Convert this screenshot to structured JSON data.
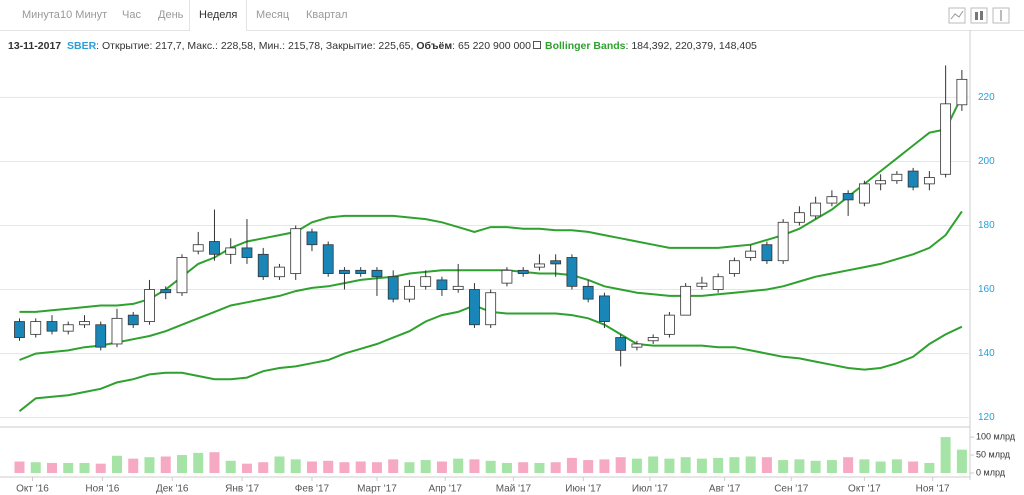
{
  "tabs": {
    "items": [
      "Минута",
      "10 Минут",
      "Час",
      "День",
      "Неделя",
      "Месяц",
      "Квартал"
    ],
    "active": 4
  },
  "header": {
    "date": "13-11-2017",
    "symbol": "SBER",
    "ohlc": ": Открытие: 217,7, Макс.: 228,58, Мин.: 215,78, Закрытие: 225,65,",
    "volume_label": "Объём",
    "volume_value": ": 65 220 900 000",
    "indicator": "Bollinger Bands",
    "indicator_values": ": 184,392, 220,379, 148,405"
  },
  "chart_data": {
    "type": "candlestick",
    "xlim": [
      -1.2,
      58.5
    ],
    "xticks": [
      {
        "value": 0.8,
        "label": "Окт '16"
      },
      {
        "value": 5.1,
        "label": "Ноя '16"
      },
      {
        "value": 9.4,
        "label": "Дек '16"
      },
      {
        "value": 13.7,
        "label": "Янв '17"
      },
      {
        "value": 18,
        "label": "Фев '17"
      },
      {
        "value": 22,
        "label": "Март '17"
      },
      {
        "value": 26.2,
        "label": "Апр '17"
      },
      {
        "value": 30.4,
        "label": "Май '17"
      },
      {
        "value": 34.7,
        "label": "Июн '17"
      },
      {
        "value": 38.8,
        "label": "Июл '17"
      },
      {
        "value": 43.4,
        "label": "Авг '17"
      },
      {
        "value": 47.5,
        "label": "Сен '17"
      },
      {
        "value": 52,
        "label": "Окт '17"
      },
      {
        "value": 56.2,
        "label": "Ноя '17"
      }
    ],
    "ylim": [
      118,
      239.5
    ],
    "yticks": [
      120,
      140,
      160,
      180,
      200,
      220
    ],
    "grid": true,
    "up_color": "#ffffff",
    "down_color": "#1a86b8",
    "open": [
      150,
      146,
      150,
      147,
      149,
      149,
      143,
      152,
      150,
      160,
      159,
      172,
      175,
      171,
      173,
      171,
      164,
      165,
      178,
      174,
      166,
      166,
      166,
      164,
      157,
      161,
      163,
      160,
      160,
      149,
      162,
      166,
      167,
      169,
      170,
      161,
      158,
      145,
      142,
      144,
      146,
      152,
      161,
      160,
      165,
      170,
      174,
      169,
      181,
      183,
      187,
      190,
      187,
      193,
      194,
      197,
      193,
      196,
      217.7
    ],
    "high": [
      151,
      151,
      152,
      150,
      152,
      150,
      154,
      153,
      163,
      161,
      171,
      178,
      185,
      176,
      182,
      173,
      168,
      180,
      179,
      175,
      167,
      167,
      167,
      166,
      163,
      166,
      164,
      168,
      162,
      160,
      167,
      167,
      171,
      171,
      171,
      163,
      159,
      146,
      144,
      146,
      153,
      162,
      164,
      165,
      170,
      174,
      175,
      182,
      186,
      189,
      191,
      191,
      194,
      196,
      197,
      198,
      197,
      230,
      228.58
    ],
    "low": [
      144,
      145,
      146,
      146,
      148,
      141,
      142,
      148,
      149,
      157,
      158,
      171,
      169,
      168,
      168,
      163,
      163,
      163,
      172,
      164,
      160,
      164,
      158,
      156,
      156,
      160,
      158,
      159,
      148,
      148,
      161,
      164,
      166,
      164,
      160,
      156,
      148,
      136,
      141,
      143,
      145,
      152,
      160,
      159,
      164,
      169,
      168,
      168,
      180,
      182,
      186,
      183,
      186,
      191,
      193,
      191,
      191,
      195,
      215.78
    ],
    "close": [
      145,
      150,
      147,
      149,
      150,
      142,
      151,
      149,
      160,
      159,
      170,
      174,
      171,
      173,
      170,
      164,
      167,
      179,
      174,
      165,
      165,
      165,
      164,
      157,
      161,
      164,
      160,
      161,
      149,
      159,
      166,
      165,
      168,
      168,
      161,
      157,
      150,
      141,
      143,
      145,
      152,
      161,
      162,
      164,
      169,
      172,
      169,
      181,
      184,
      187,
      189,
      188,
      193,
      194,
      196,
      192,
      195,
      218,
      225.65
    ],
    "bands": {
      "color": "#2ea12e",
      "upper": [
        153,
        153,
        153.5,
        154,
        154.5,
        155,
        155,
        155.5,
        157,
        160,
        164,
        168,
        170,
        173,
        175,
        176,
        177,
        178,
        181,
        182.5,
        183,
        183,
        183,
        183,
        182.5,
        182,
        181,
        179.5,
        178,
        179.5,
        179.5,
        179,
        179,
        178.5,
        178.5,
        178,
        177,
        176,
        175,
        174,
        173,
        173,
        173,
        173,
        173.5,
        174,
        175.5,
        177,
        179,
        182,
        185,
        189,
        193,
        197,
        201,
        205,
        209,
        210,
        220.379
      ],
      "middle": [
        138,
        140,
        140.5,
        141,
        142,
        142.5,
        143.5,
        144.5,
        145.5,
        147,
        149,
        151,
        153,
        155,
        156,
        157,
        158,
        159.5,
        160.5,
        161,
        162,
        163,
        163.5,
        164,
        165,
        165.5,
        166,
        166,
        166,
        166,
        166,
        165.5,
        165,
        165,
        164.5,
        163,
        161,
        160,
        159,
        158.5,
        158,
        158,
        158,
        158.5,
        159,
        159.5,
        160,
        161,
        162.5,
        164,
        165,
        166,
        167,
        168,
        169.5,
        171,
        173,
        177,
        184.392
      ],
      "lower": [
        122,
        126,
        126.5,
        127,
        128,
        129,
        131,
        132,
        133.5,
        134,
        134,
        133,
        132,
        132,
        132.5,
        134.5,
        135.5,
        136,
        137,
        138,
        140,
        141.5,
        143,
        145,
        147,
        150,
        152,
        153,
        155,
        153,
        152.5,
        152.5,
        152.5,
        152.5,
        152,
        151,
        149,
        146,
        143,
        142.5,
        142.5,
        142.5,
        142.5,
        142,
        142,
        141,
        140,
        139,
        138.5,
        137.5,
        136.5,
        135.5,
        135,
        135.5,
        137,
        139,
        143,
        146,
        148.405
      ]
    },
    "volume": {
      "ylim": [
        0,
        117
      ],
      "yticks": [
        {
          "value": 0,
          "label": "0 млрд"
        },
        {
          "value": 50,
          "label": "50 млрд"
        },
        {
          "value": 100,
          "label": "100 млрд"
        }
      ],
      "up_color": "#a6e3a6",
      "down_color": "#f6a9c2",
      "values": [
        32,
        30,
        28,
        28,
        28,
        26,
        48,
        40,
        44,
        46,
        50,
        56,
        58,
        34,
        26,
        30,
        46,
        38,
        32,
        34,
        30,
        32,
        30,
        38,
        30,
        36,
        32,
        40,
        38,
        34,
        28,
        30,
        28,
        30,
        42,
        36,
        38,
        44,
        40,
        46,
        40,
        44,
        40,
        42,
        44,
        46,
        44,
        36,
        38,
        34,
        36,
        44,
        38,
        32,
        38,
        32,
        28,
        100,
        65
      ]
    }
  }
}
